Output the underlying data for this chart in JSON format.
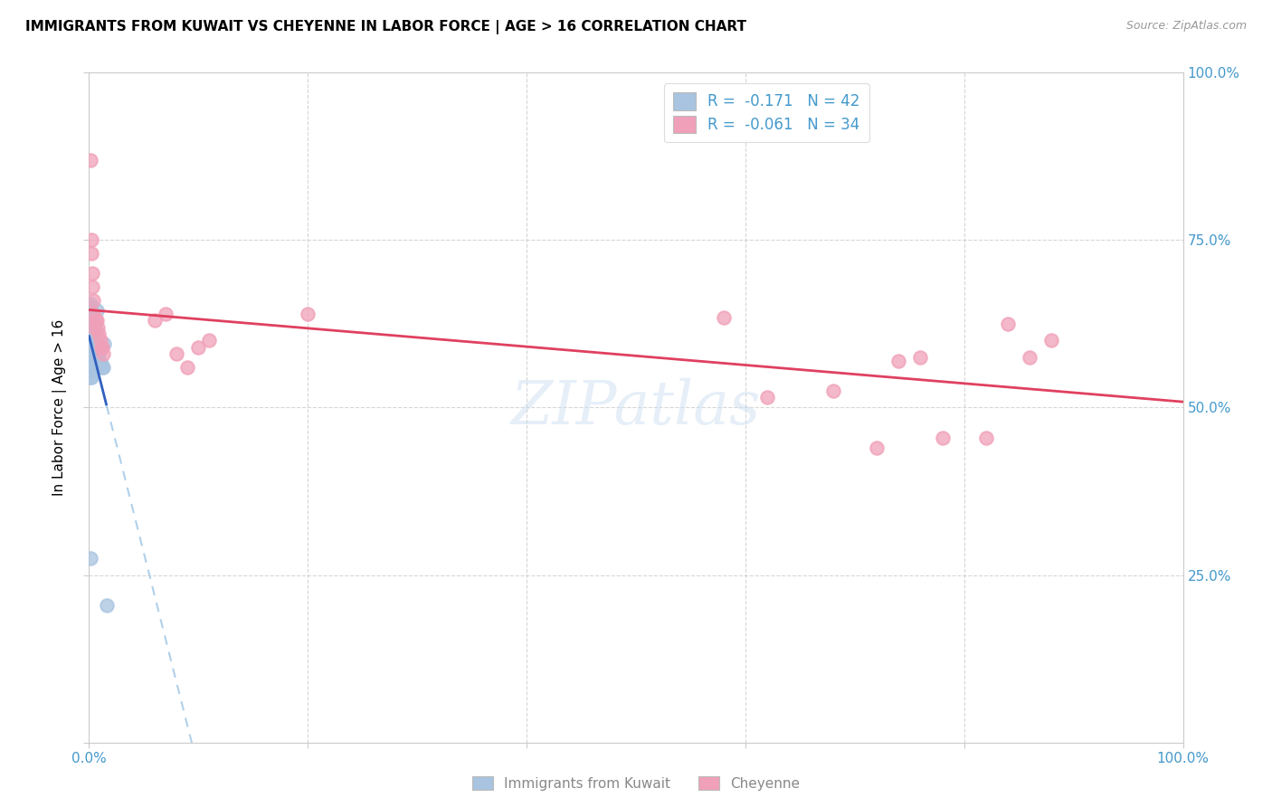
{
  "title": "IMMIGRANTS FROM KUWAIT VS CHEYENNE IN LABOR FORCE | AGE > 16 CORRELATION CHART",
  "source": "Source: ZipAtlas.com",
  "ylabel": "In Labor Force | Age > 16",
  "r1": -0.171,
  "n1": 42,
  "r2": -0.061,
  "n2": 34,
  "blue_color": "#a8c4e0",
  "pink_color": "#f0a0b8",
  "blue_line_color": "#3060c0",
  "pink_line_color": "#e04060",
  "dashed_line_color": "#b0d0ea",
  "watermark": "ZIPatlas",
  "blue_x": [
    0.001,
    0.001,
    0.001,
    0.001,
    0.001,
    0.001,
    0.001,
    0.001,
    0.001,
    0.001,
    0.001,
    0.001,
    0.002,
    0.002,
    0.002,
    0.002,
    0.002,
    0.002,
    0.002,
    0.002,
    0.003,
    0.003,
    0.003,
    0.003,
    0.003,
    0.004,
    0.004,
    0.004,
    0.005,
    0.005,
    0.006,
    0.006,
    0.007,
    0.008,
    0.009,
    0.01,
    0.011,
    0.012,
    0.013,
    0.014,
    0.001,
    0.016
  ],
  "blue_y": [
    0.62,
    0.63,
    0.645,
    0.65,
    0.655,
    0.6,
    0.595,
    0.585,
    0.575,
    0.565,
    0.555,
    0.545,
    0.615,
    0.605,
    0.595,
    0.585,
    0.565,
    0.555,
    0.545,
    0.605,
    0.625,
    0.615,
    0.605,
    0.595,
    0.585,
    0.625,
    0.615,
    0.605,
    0.615,
    0.605,
    0.615,
    0.58,
    0.645,
    0.585,
    0.58,
    0.59,
    0.565,
    0.56,
    0.56,
    0.595,
    0.275,
    0.205
  ],
  "pink_x": [
    0.001,
    0.002,
    0.002,
    0.003,
    0.003,
    0.004,
    0.004,
    0.005,
    0.006,
    0.007,
    0.008,
    0.009,
    0.01,
    0.011,
    0.012,
    0.013,
    0.06,
    0.07,
    0.08,
    0.09,
    0.1,
    0.11,
    0.2,
    0.58,
    0.62,
    0.68,
    0.72,
    0.74,
    0.76,
    0.78,
    0.82,
    0.84,
    0.86,
    0.88
  ],
  "pink_y": [
    0.87,
    0.75,
    0.73,
    0.7,
    0.68,
    0.66,
    0.64,
    0.62,
    0.63,
    0.63,
    0.62,
    0.61,
    0.6,
    0.59,
    0.59,
    0.58,
    0.63,
    0.64,
    0.58,
    0.56,
    0.59,
    0.6,
    0.64,
    0.635,
    0.515,
    0.525,
    0.44,
    0.57,
    0.575,
    0.455,
    0.455,
    0.625,
    0.575,
    0.6
  ]
}
